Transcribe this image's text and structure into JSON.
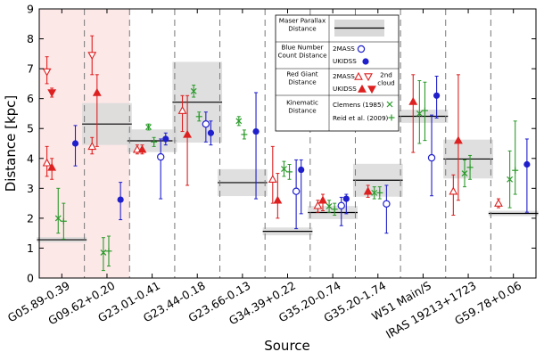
{
  "chart_data": {
    "type": "scatter",
    "title": "",
    "xlabel": "Source",
    "ylabel": "Distance [kpc]",
    "ylim": [
      0,
      9
    ],
    "yticks": [
      0,
      1,
      2,
      3,
      4,
      5,
      6,
      7,
      8,
      9
    ],
    "grid": false,
    "legend_placement": "top-center",
    "categories": [
      "G05.89-0.39",
      "G09.62+0.20",
      "G23.01-0.41",
      "G23.44-0.18",
      "G23.66-0.13",
      "G34.39+0.22",
      "G35.20-0.74",
      "G35.20-1.74",
      "W51 Main/S",
      "IRAS 19213+1723",
      "G59.78+0.06"
    ],
    "highlighted_categories": [
      0,
      1
    ],
    "maser_parallax": [
      {
        "source": 0,
        "value": 1.28,
        "err": 0.09
      },
      {
        "source": 1,
        "value": 5.15,
        "err": 0.7
      },
      {
        "source": 2,
        "value": 4.59,
        "err": 0.38
      },
      {
        "source": 3,
        "value": 5.88,
        "err": 1.35
      },
      {
        "source": 4,
        "value": 3.19,
        "err": 0.45
      },
      {
        "source": 5,
        "value": 1.56,
        "err": 0.13
      },
      {
        "source": 6,
        "value": 2.19,
        "err": 0.22
      },
      {
        "source": 7,
        "value": 3.27,
        "err": 0.55
      },
      {
        "source": 8,
        "value": 5.41,
        "err": 0.22
      },
      {
        "source": 9,
        "value": 3.98,
        "err": 0.65
      },
      {
        "source": 10,
        "value": 2.16,
        "err": 0.09
      }
    ],
    "series": [
      {
        "name": "Blue Number Count Distance 2MASS",
        "color": "#1f1fcc",
        "marker": "circle-open",
        "points": [
          {
            "source": 2,
            "y": 4.05,
            "lo": 2.65,
            "hi": 4.65
          },
          {
            "source": 3,
            "y": 5.15,
            "lo": 4.55,
            "hi": 5.55
          },
          {
            "source": 5,
            "y": 2.9,
            "lo": 1.65,
            "hi": 3.95
          },
          {
            "source": 6,
            "y": 2.42,
            "lo": 1.75,
            "hi": 2.7
          },
          {
            "source": 7,
            "y": 2.48,
            "lo": 1.5,
            "hi": 3.1
          },
          {
            "source": 8,
            "y": 4.02,
            "lo": 2.75,
            "hi": 5.45
          }
        ]
      },
      {
        "name": "Blue Number Count Distance UKIDSS",
        "color": "#1f1fcc",
        "marker": "circle-filled",
        "points": [
          {
            "source": 0,
            "y": 4.5,
            "lo": 3.75,
            "hi": 5.1
          },
          {
            "source": 1,
            "y": 2.62,
            "lo": 1.95,
            "hi": 3.2
          },
          {
            "source": 2,
            "y": 4.65,
            "lo": 4.45,
            "hi": 4.85
          },
          {
            "source": 3,
            "y": 4.85,
            "lo": 4.45,
            "hi": 5.25
          },
          {
            "source": 4,
            "y": 4.9,
            "lo": 2.65,
            "hi": 6.2
          },
          {
            "source": 5,
            "y": 3.62,
            "lo": 2.15,
            "hi": 3.95
          },
          {
            "source": 6,
            "y": 2.65,
            "lo": 2.15,
            "hi": 2.8
          },
          {
            "source": 8,
            "y": 6.1,
            "lo": 5.35,
            "hi": 6.75
          },
          {
            "source": 10,
            "y": 3.8,
            "lo": 2.2,
            "hi": 4.65
          }
        ]
      },
      {
        "name": "Red Giant Distance 2MASS",
        "color": "#dd2020",
        "marker": "triangle-open",
        "points": [
          {
            "source": 0,
            "y": 3.85,
            "lo": 3.4,
            "hi": 4.4
          },
          {
            "source": 1,
            "y": 4.4,
            "lo": 4.15,
            "hi": 4.7
          },
          {
            "source": 2,
            "y": 4.3,
            "lo": 4.15,
            "hi": 4.45
          },
          {
            "source": 3,
            "y": 5.6,
            "lo": 4.9,
            "hi": 6.1
          },
          {
            "source": 5,
            "y": 3.3,
            "lo": 2.5,
            "hi": 4.4
          },
          {
            "source": 6,
            "y": 2.42,
            "lo": 2.2,
            "hi": 2.6
          },
          {
            "source": 9,
            "y": 2.9,
            "lo": 2.1,
            "hi": 3.45
          },
          {
            "source": 10,
            "y": 2.5,
            "lo": 2.35,
            "hi": 2.65
          }
        ]
      },
      {
        "name": "Red Giant Distance 2MASS 2nd cloud",
        "color": "#dd2020",
        "marker": "triangle-down-open",
        "points": [
          {
            "source": 0,
            "y": 6.9,
            "lo": 6.5,
            "hi": 7.4
          },
          {
            "source": 1,
            "y": 7.45,
            "lo": 6.8,
            "hi": 8.1
          }
        ]
      },
      {
        "name": "Red Giant Distance UKIDSS",
        "color": "#dd2020",
        "marker": "triangle-filled",
        "points": [
          {
            "source": 0,
            "y": 3.7,
            "lo": 3.3,
            "hi": 4.0
          },
          {
            "source": 1,
            "y": 6.2,
            "lo": 4.4,
            "hi": 6.8
          },
          {
            "source": 2,
            "y": 4.3,
            "lo": 4.15,
            "hi": 4.45
          },
          {
            "source": 3,
            "y": 4.8,
            "lo": 3.1,
            "hi": 6.1
          },
          {
            "source": 5,
            "y": 2.6,
            "lo": 2.0,
            "hi": 3.5
          },
          {
            "source": 6,
            "y": 2.6,
            "lo": 2.25,
            "hi": 2.8
          },
          {
            "source": 7,
            "y": 2.9,
            "lo": 2.7,
            "hi": 3.1
          },
          {
            "source": 8,
            "y": 5.9,
            "lo": 4.2,
            "hi": 6.8
          },
          {
            "source": 9,
            "y": 4.6,
            "lo": 2.6,
            "hi": 6.8
          }
        ]
      },
      {
        "name": "Red Giant Distance UKIDSS 2nd cloud",
        "color": "#dd2020",
        "marker": "triangle-down-filled",
        "points": [
          {
            "source": 0,
            "y": 6.2,
            "lo": 6.05,
            "hi": 6.35
          }
        ]
      },
      {
        "name": "Kinematic Distance Clemens (1985)",
        "color": "#2a9a2a",
        "marker": "x",
        "points": [
          {
            "source": 0,
            "y": 2.0,
            "lo": 1.5,
            "hi": 3.0
          },
          {
            "source": 1,
            "y": 0.85,
            "lo": 0.25,
            "hi": 1.35
          },
          {
            "source": 2,
            "y": 5.05,
            "lo": 4.95,
            "hi": 5.15
          },
          {
            "source": 3,
            "y": 6.25,
            "lo": 6.05,
            "hi": 6.45
          },
          {
            "source": 4,
            "y": 5.25,
            "lo": 5.1,
            "hi": 5.4
          },
          {
            "source": 5,
            "y": 3.65,
            "lo": 3.4,
            "hi": 3.9
          },
          {
            "source": 6,
            "y": 2.4,
            "lo": 2.2,
            "hi": 2.6
          },
          {
            "source": 7,
            "y": 2.85,
            "lo": 2.65,
            "hi": 3.05
          },
          {
            "source": 8,
            "y": 5.5,
            "lo": 4.5,
            "hi": 6.6
          },
          {
            "source": 9,
            "y": 3.5,
            "lo": 3.05,
            "hi": 3.95
          },
          {
            "source": 10,
            "y": 3.3,
            "lo": 2.35,
            "hi": 4.25
          }
        ]
      },
      {
        "name": "Kinematic Distance Reid et al. (2009)",
        "color": "#2a9a2a",
        "marker": "plus",
        "points": [
          {
            "source": 0,
            "y": 1.9,
            "lo": 1.3,
            "hi": 2.5
          },
          {
            "source": 1,
            "y": 0.9,
            "lo": 0.4,
            "hi": 1.4
          },
          {
            "source": 2,
            "y": 4.55,
            "lo": 4.4,
            "hi": 4.7
          },
          {
            "source": 3,
            "y": 5.4,
            "lo": 5.25,
            "hi": 5.55
          },
          {
            "source": 4,
            "y": 4.8,
            "lo": 4.65,
            "hi": 4.95
          },
          {
            "source": 5,
            "y": 3.55,
            "lo": 3.3,
            "hi": 3.8
          },
          {
            "source": 6,
            "y": 2.3,
            "lo": 2.1,
            "hi": 2.5
          },
          {
            "source": 7,
            "y": 2.85,
            "lo": 2.65,
            "hi": 3.05
          },
          {
            "source": 8,
            "y": 5.6,
            "lo": 4.6,
            "hi": 6.55
          },
          {
            "source": 9,
            "y": 3.7,
            "lo": 3.3,
            "hi": 4.1
          },
          {
            "source": 10,
            "y": 3.6,
            "lo": 2.8,
            "hi": 5.25
          }
        ]
      }
    ],
    "legend": {
      "maser": "Maser Parallax Distance",
      "blue": "Blue Number Count Distance",
      "red": "Red Giant Distance",
      "kinematic": "Kinematic Distance",
      "twomass": "2MASS",
      "ukidss": "UKIDSS",
      "second_cloud": "2nd cloud",
      "clemens": "Clemens (1985)",
      "reid": "Reid et al. (2009)"
    },
    "colors": {
      "blue": "#1f1fcc",
      "red": "#dd2020",
      "green": "#2a9a2a",
      "maser_band": "#d9d9d9",
      "highlight": "#fde8e8"
    }
  }
}
